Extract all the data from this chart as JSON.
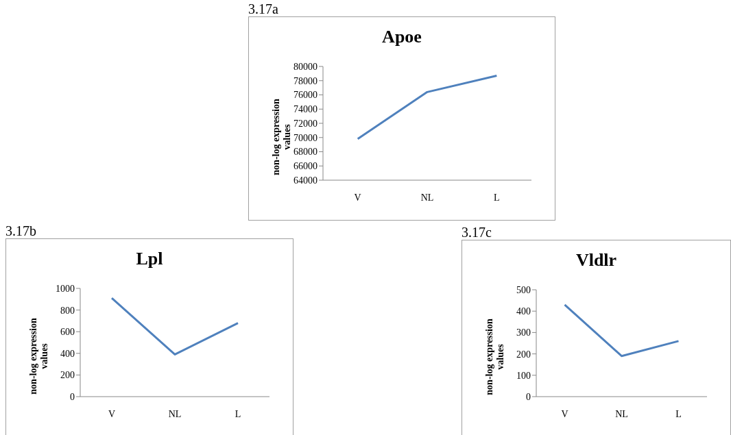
{
  "chart_data": [
    {
      "type": "line",
      "title": "Apoe",
      "annotations": [
        "3.17a"
      ],
      "ylabel": "non-log expression values",
      "categories": [
        "V",
        "NL",
        "L"
      ],
      "values": [
        69800,
        76400,
        78700
      ],
      "color": "#4f81bd",
      "ylim": [
        64000,
        80000
      ],
      "yticks": [
        64000,
        66000,
        68000,
        70000,
        72000,
        74000,
        76000,
        78000,
        80000
      ]
    },
    {
      "type": "line",
      "title": "Lpl",
      "annotations": [
        "3.17b"
      ],
      "ylabel": "non-log expression values",
      "categories": [
        "V",
        "NL",
        "L"
      ],
      "values": [
        910,
        390,
        680
      ],
      "color": "#4f81bd",
      "ylim": [
        0,
        1000
      ],
      "yticks": [
        0,
        200,
        400,
        600,
        800,
        1000
      ]
    },
    {
      "type": "line",
      "title": "Vldlr",
      "annotations": [
        "3.17c"
      ],
      "ylabel": "non-log expression values",
      "categories": [
        "V",
        "NL",
        "L"
      ],
      "values": [
        430,
        190,
        260
      ],
      "color": "#4f81bd",
      "ylim": [
        0,
        500
      ],
      "yticks": [
        0,
        100,
        200,
        300,
        400,
        500
      ]
    }
  ]
}
